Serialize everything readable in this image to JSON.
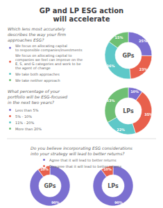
{
  "chart_data": [
    {
      "type": "pie",
      "title": "GP and LP ESG action\nwill accelerate",
      "subtitle": "Which lens most accurately\ndescribes the way your firm\napproaches ESG?",
      "annotations": [
        "GPs"
      ],
      "categories": [
        "We focus on allocating capital\nto responsible companies/investments",
        "We focus on allocating capital to\ncompanies we feel can improve on the\nE, S, and G categories and work to be\nthe agent of change",
        "We take both approaches",
        "We take neither approach"
      ],
      "values": [
        25,
        23,
        36,
        15
      ],
      "value_labels": [
        "25%",
        "23%",
        "36%",
        "15%"
      ],
      "colors": [
        "#7B6FD0",
        "#E8604C",
        "#5EC8C8",
        "#6FBF73"
      ],
      "data_labels": true,
      "legend": "left"
    },
    {
      "type": "pie",
      "subtitle": "What percentage of your\nportfolio will be ESG-focused\nin the next two years?",
      "annotations": [
        "LPs"
      ],
      "categories": [
        "Less than 5%",
        "5% - 10%",
        "11% - 20%",
        "More than 20%"
      ],
      "values": [
        10,
        35,
        22,
        33
      ],
      "value_labels": [
        "10%",
        "35%",
        "22%",
        "33%"
      ],
      "colors": [
        "#7B6FD0",
        "#E8604C",
        "#5EC8C8",
        "#6FBF73"
      ],
      "data_labels": true,
      "legend": "left"
    },
    {
      "type": "pie",
      "subtitle": "Do you believe incorporating ESG considerations\ninto your strategy will lead to better returns?",
      "annotations": [
        "GPs"
      ],
      "categories": [
        "Agree that it will lead to better returns",
        "Disagree that it will lead to better returns"
      ],
      "values": [
        90,
        10
      ],
      "value_labels": [
        "90%",
        "10%"
      ],
      "colors": [
        "#7B6FD0",
        "#E8604C"
      ],
      "data_labels": true,
      "legend": "top"
    },
    {
      "type": "pie",
      "annotations": [
        "LPs"
      ],
      "categories": [
        "Agree that it will lead to better returns",
        "Disagree that it will lead to better returns"
      ],
      "values": [
        90,
        10
      ],
      "value_labels": [
        "90%",
        "10%"
      ],
      "colors": [
        "#7B6FD0",
        "#E8604C"
      ],
      "data_labels": true
    }
  ]
}
